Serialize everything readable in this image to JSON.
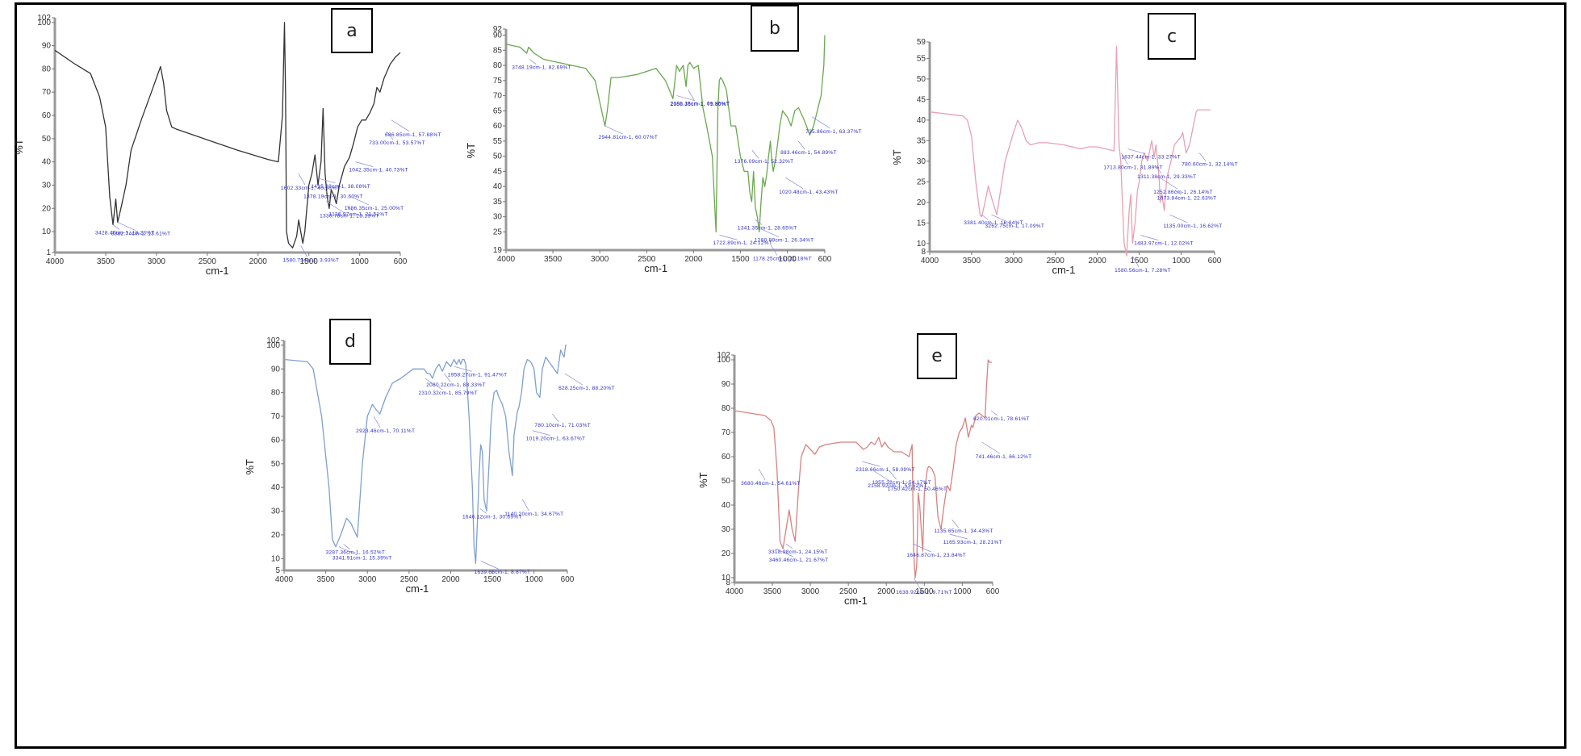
{
  "figure": {
    "panels": [
      "a",
      "b",
      "c",
      "d",
      "e"
    ]
  },
  "chart_data": [
    {
      "id": "a",
      "type": "line",
      "panel_label": "a",
      "title": "",
      "xlabel": "cm-1",
      "ylabel": "%T",
      "line_color": "#333333",
      "xlim": [
        4000,
        600
      ],
      "ylim": [
        1,
        102
      ],
      "xticks": [
        "4000",
        "3500",
        "3000",
        "2500",
        "2000",
        "1500",
        "1000",
        "600"
      ],
      "yticks": [
        "1",
        "10",
        "20",
        "30",
        "40",
        "50",
        "60",
        "70",
        "80",
        "90",
        "100",
        "102"
      ],
      "x": [
        4000,
        3800,
        3650,
        3560,
        3500,
        3460,
        3428,
        3400,
        3382,
        3350,
        3300,
        3250,
        3150,
        3050,
        2960,
        2930,
        2900,
        2850,
        2800,
        2600,
        2400,
        2200,
        2050,
        1900,
        1800,
        1760,
        1740,
        1730,
        1720,
        1700,
        1660,
        1620,
        1600,
        1560,
        1540,
        1500,
        1470,
        1440,
        1410,
        1380,
        1360,
        1340,
        1320,
        1300,
        1280,
        1250,
        1230,
        1200,
        1150,
        1100,
        1060,
        1020,
        980,
        940,
        900,
        860,
        830,
        800,
        760,
        700,
        650,
        600
      ],
      "y": [
        88,
        82,
        78,
        68,
        55,
        25,
        13,
        24,
        14,
        20,
        30,
        45,
        58,
        70,
        81,
        74,
        62,
        55,
        54,
        51,
        48,
        45,
        43,
        41,
        40,
        60,
        100,
        70,
        10,
        5,
        3,
        8,
        15,
        5,
        10,
        30,
        35,
        43,
        30,
        40,
        63,
        35,
        25,
        20,
        28,
        25,
        22,
        30,
        38,
        42,
        48,
        55,
        58,
        58,
        61,
        65,
        72,
        70,
        76,
        82,
        85,
        87
      ],
      "annotations": [
        {
          "text": "3428.46cm-1, 13.23%T",
          "x": 3428,
          "y": 13
        },
        {
          "text": "3382.74cm-1, 13.61%T",
          "x": 3382,
          "y": 14
        },
        {
          "text": "1602.33cm-1, 40.98%T",
          "x": 1602,
          "y": 35
        },
        {
          "text": "1415.28cm-1, 38.08%T",
          "x": 1415,
          "y": 33
        },
        {
          "text": "1378.19cm-1, 30.60%T",
          "x": 1378,
          "y": 30
        },
        {
          "text": "1330.78cm-1, 23.19%T",
          "x": 1330,
          "y": 23
        },
        {
          "text": "1126.97cm-1, 21.51%T",
          "x": 1127,
          "y": 21
        },
        {
          "text": "1086.35cm-1, 25.00%T",
          "x": 1086,
          "y": 25
        },
        {
          "text": "1580.73cm-1, 3.93%T",
          "x": 1580,
          "y": 4
        },
        {
          "text": "1042.35cm-1, 40.73%T",
          "x": 1042,
          "y": 40
        },
        {
          "text": "733.00cm-1, 53.57%T",
          "x": 733,
          "y": 53
        },
        {
          "text": "686.85cm-1, 57.88%T",
          "x": 687,
          "y": 58
        }
      ]
    },
    {
      "id": "b",
      "type": "line",
      "panel_label": "b",
      "title": "",
      "xlabel": "cm-1",
      "ylabel": "%T",
      "line_color": "#6aa84f",
      "xlim": [
        4000,
        600
      ],
      "ylim": [
        19,
        92
      ],
      "xticks": [
        "4000",
        "3500",
        "3000",
        "2500",
        "2000",
        "1500",
        "1000",
        "600"
      ],
      "yticks": [
        "19",
        "25",
        "30",
        "35",
        "40",
        "45",
        "50",
        "55",
        "60",
        "65",
        "70",
        "75",
        "80",
        "85",
        "90",
        "92"
      ],
      "x": [
        4000,
        3850,
        3780,
        3760,
        3700,
        3600,
        3450,
        3300,
        3150,
        3050,
        2980,
        2945,
        2920,
        2880,
        2800,
        2600,
        2400,
        2300,
        2220,
        2180,
        2150,
        2110,
        2080,
        2060,
        2040,
        2000,
        1950,
        1900,
        1860,
        1800,
        1760,
        1740,
        1725,
        1710,
        1690,
        1650,
        1600,
        1550,
        1500,
        1460,
        1420,
        1400,
        1380,
        1360,
        1340,
        1320,
        1300,
        1280,
        1260,
        1240,
        1220,
        1200,
        1180,
        1170,
        1150,
        1120,
        1100,
        1080,
        1050,
        1000,
        960,
        920,
        880,
        820,
        760,
        720,
        680,
        640,
        610,
        600
      ],
      "y": [
        87,
        86,
        84,
        86,
        84,
        82,
        81,
        80,
        79,
        75,
        65,
        60,
        65,
        76,
        76,
        77,
        79,
        75,
        69,
        80,
        78,
        80,
        73,
        80,
        81,
        79,
        80,
        66,
        60,
        50,
        25,
        66,
        75,
        76,
        75,
        72,
        60,
        60,
        50,
        45,
        45,
        38,
        35,
        45,
        33,
        30,
        25,
        35,
        43,
        40,
        44,
        50,
        55,
        50,
        45,
        50,
        55,
        60,
        65,
        63,
        60,
        65,
        66,
        62,
        57,
        60,
        65,
        70,
        80,
        90
      ],
      "annotations": [
        {
          "text": "3748.19cm-1, 82.69%T",
          "x": 3748,
          "y": 82
        },
        {
          "text": "2944.81cm-1, 60.07%T",
          "x": 2945,
          "y": 60
        },
        {
          "text": "2058.16cm-1, 71.80%T",
          "x": 2058,
          "y": 72
        },
        {
          "text": "2180.35cm-1, 69.86%T",
          "x": 2180,
          "y": 70
        },
        {
          "text": "1376.09cm-1, 52.32%T",
          "x": 1376,
          "y": 52
        },
        {
          "text": "1020.48cm-1, 43.43%T",
          "x": 1020,
          "y": 43
        },
        {
          "text": "1341.35cm-1, 28.65%T",
          "x": 1341,
          "y": 29
        },
        {
          "text": "1280.89cm-1, 26.34%T",
          "x": 1281,
          "y": 26
        },
        {
          "text": "1178.25cm-1, 21.18%T",
          "x": 1178,
          "y": 21
        },
        {
          "text": "1722.89cm-1, 24.12%T",
          "x": 1723,
          "y": 24
        },
        {
          "text": "883.46cm-1, 54.89%T",
          "x": 883,
          "y": 55
        },
        {
          "text": "735.86cm-1, 63.37%T",
          "x": 736,
          "y": 63
        }
      ]
    },
    {
      "id": "c",
      "type": "line",
      "panel_label": "c",
      "title": "",
      "xlabel": "cm-1",
      "ylabel": "%T",
      "line_color": "#e8a0b4",
      "xlim": [
        4000,
        600
      ],
      "ylim": [
        8,
        59
      ],
      "xticks": [
        "4000",
        "3500",
        "3000",
        "2500",
        "2000",
        "1500",
        "1000",
        "600"
      ],
      "yticks": [
        "8",
        "10",
        "15",
        "20",
        "25",
        "30",
        "35",
        "40",
        "45",
        "50",
        "55",
        "59"
      ],
      "x": [
        4000,
        3800,
        3600,
        3550,
        3500,
        3450,
        3400,
        3380,
        3340,
        3300,
        3260,
        3200,
        3100,
        3000,
        2950,
        2900,
        2850,
        2800,
        2700,
        2600,
        2400,
        2300,
        2200,
        2100,
        2000,
        1900,
        1800,
        1770,
        1740,
        1720,
        1700,
        1680,
        1650,
        1620,
        1600,
        1580,
        1550,
        1520,
        1500,
        1470,
        1440,
        1400,
        1350,
        1320,
        1300,
        1280,
        1260,
        1250,
        1230,
        1200,
        1170,
        1120,
        1080,
        1040,
        1000,
        980,
        940,
        900,
        860,
        820,
        800,
        760,
        700,
        650
      ],
      "y": [
        42,
        41.5,
        41,
        40,
        36,
        25,
        17,
        16.5,
        20,
        24,
        21,
        17,
        30,
        37,
        40,
        38,
        35,
        34,
        34.5,
        34.5,
        34,
        33.5,
        33,
        33.5,
        33.5,
        33,
        32.5,
        58,
        34,
        30,
        20,
        10,
        7,
        18,
        22,
        10,
        15,
        23,
        25,
        30,
        32,
        30,
        35,
        31,
        34,
        30,
        25,
        20,
        22,
        18,
        26,
        30,
        34,
        35,
        36,
        37,
        32,
        34,
        38,
        42,
        42.5,
        42.5,
        42.5,
        42.5
      ],
      "annotations": [
        {
          "text": "3381.40cm-1, 16.84%T",
          "x": 3381,
          "y": 17
        },
        {
          "text": "3262.75cm-1, 17.09%T",
          "x": 3263,
          "y": 17
        },
        {
          "text": "1713.80cm-1, 31.89%T",
          "x": 1714,
          "y": 32
        },
        {
          "text": "1637.44cm-1, 33.27%T",
          "x": 1637,
          "y": 33
        },
        {
          "text": "1311.38cm-1, 29.33%T",
          "x": 1311,
          "y": 29
        },
        {
          "text": "1252.86cm-1, 26.14%T",
          "x": 1253,
          "y": 26
        },
        {
          "text": "1073.84cm-1, 22.63%T",
          "x": 1074,
          "y": 23
        },
        {
          "text": "1135.00cm-1, 16.62%T",
          "x": 1135,
          "y": 17
        },
        {
          "text": "1580.56cm-1, 7.28%T",
          "x": 1581,
          "y": 7
        },
        {
          "text": "1483.97cm-1, 12.02%T",
          "x": 1484,
          "y": 12
        },
        {
          "text": "780.60cm-1, 32.14%T",
          "x": 781,
          "y": 32
        }
      ]
    },
    {
      "id": "d",
      "type": "line",
      "panel_label": "d",
      "title": "",
      "xlabel": "cm-1",
      "ylabel": "%T",
      "line_color": "#7f9fcf",
      "xlim": [
        4000,
        600
      ],
      "ylim": [
        5,
        102
      ],
      "xticks": [
        "4000",
        "3500",
        "3000",
        "2500",
        "2000",
        "1500",
        "1000",
        "600"
      ],
      "yticks": [
        "5",
        "10",
        "20",
        "30",
        "40",
        "50",
        "60",
        "70",
        "80",
        "90",
        "100",
        "102"
      ],
      "x": [
        4000,
        3850,
        3720,
        3650,
        3550,
        3460,
        3420,
        3380,
        3320,
        3250,
        3200,
        3120,
        3060,
        3000,
        2940,
        2900,
        2850,
        2780,
        2700,
        2600,
        2450,
        2320,
        2280,
        2250,
        2220,
        2180,
        2140,
        2100,
        2050,
        2000,
        1960,
        1930,
        1900,
        1880,
        1860,
        1840,
        1820,
        1780,
        1740,
        1720,
        1700,
        1680,
        1660,
        1640,
        1620,
        1600,
        1570,
        1540,
        1520,
        1500,
        1480,
        1450,
        1420,
        1380,
        1340,
        1300,
        1260,
        1240,
        1200,
        1180,
        1150,
        1120,
        1080,
        1040,
        1000,
        970,
        930,
        900,
        860,
        840,
        800,
        760,
        720,
        680,
        640,
        620,
        610
      ],
      "y": [
        94,
        93.5,
        93,
        90,
        70,
        40,
        18,
        15,
        20,
        27,
        25,
        19,
        50,
        70,
        75,
        73,
        71,
        78,
        84,
        86,
        90,
        90,
        88,
        88,
        86,
        90,
        92,
        89,
        93,
        91,
        94,
        92,
        94,
        92,
        94,
        94,
        92,
        70,
        40,
        15,
        8,
        25,
        45,
        58,
        55,
        35,
        30,
        50,
        65,
        75,
        80,
        81,
        78,
        75,
        70,
        55,
        45,
        62,
        72,
        74,
        80,
        90,
        94,
        93,
        90,
        80,
        78,
        90,
        95,
        94,
        92,
        90,
        88,
        98,
        95,
        100,
        100
      ],
      "annotations": [
        {
          "text": "3287.36cm-1, 16.52%T",
          "x": 3287,
          "y": 16
        },
        {
          "text": "3341.91cm-1, 15.39%T",
          "x": 3342,
          "y": 15
        },
        {
          "text": "2923.46cm-1, 70.11%T",
          "x": 2923,
          "y": 70
        },
        {
          "text": "1958.27cm-1, 91.47%T",
          "x": 1958,
          "y": 91
        },
        {
          "text": "2080.22cm-1, 88.33%T",
          "x": 2080,
          "y": 88
        },
        {
          "text": "2310.32cm-1, 85.79%T",
          "x": 2310,
          "y": 86
        },
        {
          "text": "1646.12cm-1, 30.69%T",
          "x": 1646,
          "y": 31
        },
        {
          "text": "1639.66cm-1, 8.87%T",
          "x": 1640,
          "y": 9
        },
        {
          "text": "1140.20cm-1, 34.67%T",
          "x": 1140,
          "y": 35
        },
        {
          "text": "1019.20cm-1, 63.67%T",
          "x": 1019,
          "y": 64
        },
        {
          "text": "780.10cm-1, 71.03%T",
          "x": 780,
          "y": 71
        },
        {
          "text": "628.25cm-1, 88.20%T",
          "x": 628,
          "y": 88
        }
      ]
    },
    {
      "id": "e",
      "type": "line",
      "panel_label": "e",
      "title": "",
      "xlabel": "cm-1",
      "ylabel": "%T",
      "line_color": "#d98080",
      "xlim": [
        4000,
        600
      ],
      "ylim": [
        8,
        102
      ],
      "xticks": [
        "4000",
        "3500",
        "3000",
        "2500",
        "2000",
        "1500",
        "1000",
        "600"
      ],
      "yticks": [
        "8",
        "10",
        "20",
        "30",
        "40",
        "50",
        "60",
        "70",
        "80",
        "90",
        "100",
        "102"
      ],
      "x": [
        4000,
        3800,
        3600,
        3520,
        3480,
        3440,
        3400,
        3360,
        3320,
        3280,
        3240,
        3200,
        3160,
        3120,
        3060,
        3000,
        2940,
        2880,
        2800,
        2600,
        2400,
        2300,
        2250,
        2200,
        2150,
        2100,
        2060,
        2020,
        1980,
        1940,
        1900,
        1800,
        1700,
        1660,
        1640,
        1620,
        1600,
        1580,
        1560,
        1540,
        1520,
        1500,
        1480,
        1460,
        1440,
        1400,
        1360,
        1320,
        1280,
        1240,
        1200,
        1160,
        1120,
        1080,
        1040,
        1000,
        960,
        920,
        880,
        860,
        820,
        780,
        740,
        700,
        680,
        660,
        640,
        620,
        610
      ],
      "y": [
        79,
        78,
        77,
        75,
        72,
        55,
        25,
        22,
        30,
        38,
        30,
        25,
        45,
        60,
        65,
        63,
        61,
        64,
        65,
        66,
        66,
        63,
        64,
        66,
        65,
        68,
        64,
        66,
        64,
        63,
        62,
        62,
        60,
        65,
        20,
        10,
        15,
        45,
        40,
        30,
        21,
        45,
        50,
        55,
        56,
        55,
        52,
        35,
        30,
        40,
        48,
        46,
        55,
        65,
        70,
        72,
        76,
        68,
        73,
        72,
        77,
        78,
        77,
        76,
        90,
        100,
        99,
        99,
        99
      ],
      "annotations": [
        {
          "text": "3318.98cm-1, 24.15%T",
          "x": 3319,
          "y": 24
        },
        {
          "text": "3460.46cm-1, 21.67%T",
          "x": 3460,
          "y": 22
        },
        {
          "text": "3680.46cm-1, 54.61%T",
          "x": 3680,
          "y": 55
        },
        {
          "text": "2318.66cm-1, 58.09%T",
          "x": 2319,
          "y": 58
        },
        {
          "text": "1955.32cm-1, 54.17%T",
          "x": 1955,
          "y": 54
        },
        {
          "text": "2158.92cm-1, 53.62%T",
          "x": 2159,
          "y": 54
        },
        {
          "text": "1750.42cm-1, 50.46%T",
          "x": 1750,
          "y": 50
        },
        {
          "text": "1646.87cm-1, 23.84%T",
          "x": 1647,
          "y": 24
        },
        {
          "text": "1638.92cm-1, 9.71%T",
          "x": 1639,
          "y": 10
        },
        {
          "text": "1165.93cm-1, 28.21%T",
          "x": 1166,
          "y": 28
        },
        {
          "text": "1135.65cm-1, 34.43%T",
          "x": 1136,
          "y": 34
        },
        {
          "text": "741.46cm-1, 66.12%T",
          "x": 741,
          "y": 66
        },
        {
          "text": "620.01cm-1, 78.61%T",
          "x": 620,
          "y": 79
        }
      ]
    }
  ]
}
